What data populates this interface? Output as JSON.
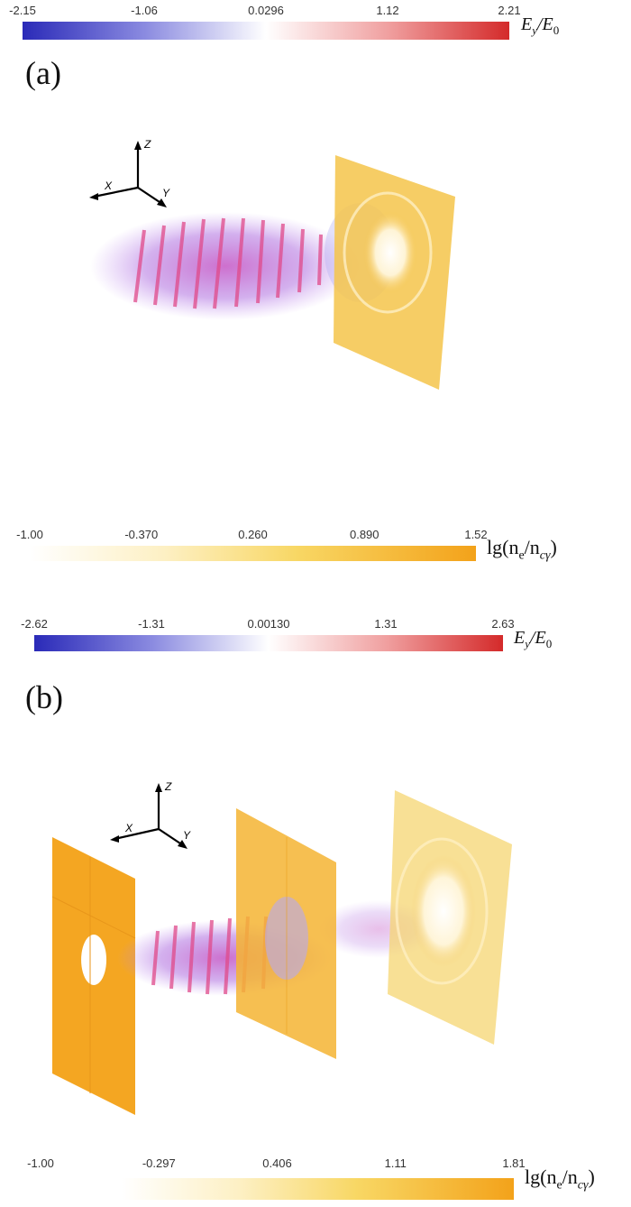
{
  "panels": [
    {
      "label": "(a)",
      "field_colorbar": {
        "ticks": [
          "-2.15",
          "-1.06",
          "0.0296",
          "1.12",
          "2.21"
        ],
        "label_main": "E",
        "label_sub": "y",
        "label_slash": "/E",
        "label_sub2": "0",
        "colors": [
          "#2a2ab8",
          "#ffffff",
          "#d42a2a"
        ]
      },
      "density_colorbar": {
        "ticks": [
          "-1.00",
          "-0.370",
          "0.260",
          "0.890",
          "1.52"
        ],
        "label_prefix": "lg(n",
        "label_sub1": "e",
        "label_mid": "/n",
        "label_sub2": "cγ",
        "label_suffix": ")",
        "colors": [
          "#ffffff",
          "#f7d56a",
          "#f3a21a"
        ]
      },
      "axes": {
        "x": "X",
        "y": "Y",
        "z": "Z"
      }
    },
    {
      "label": "(b)",
      "field_colorbar": {
        "ticks": [
          "-2.62",
          "-1.31",
          "0.00130",
          "1.31",
          "2.63"
        ],
        "label_main": "E",
        "label_sub": "y",
        "label_slash": "/E",
        "label_sub2": "0",
        "colors": [
          "#2a2ab8",
          "#ffffff",
          "#d42a2a"
        ]
      },
      "density_colorbar": {
        "ticks": [
          "-1.00",
          "-0.297",
          "0.406",
          "1.11",
          "1.81"
        ],
        "label_prefix": "lg(n",
        "label_sub1": "e",
        "label_mid": "/n",
        "label_sub2": "cγ",
        "label_suffix": ")",
        "colors": [
          "#ffffff",
          "#f7d56a",
          "#f3a21a"
        ]
      },
      "axes": {
        "x": "X",
        "y": "Y",
        "z": "Z"
      }
    }
  ]
}
